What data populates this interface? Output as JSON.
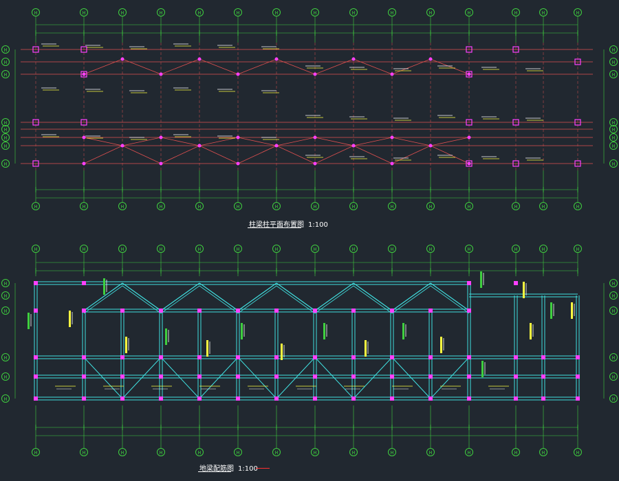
{
  "drawing": {
    "plan_top_title": "柱梁柱平面布置图",
    "plan_top_scale": "1:100",
    "plan_bottom_title": "地梁配筋图",
    "plan_bottom_scale": "1:100",
    "axis_marker_label": "H"
  },
  "colors": {
    "background": "#212830",
    "grid_line": "#e05050",
    "dimension": "#3fcf3f",
    "column": "#ff40ff",
    "beam": "#40e0e0",
    "annotation": "#ffff40",
    "leader": "#40ffff",
    "text": "#ffffff"
  }
}
